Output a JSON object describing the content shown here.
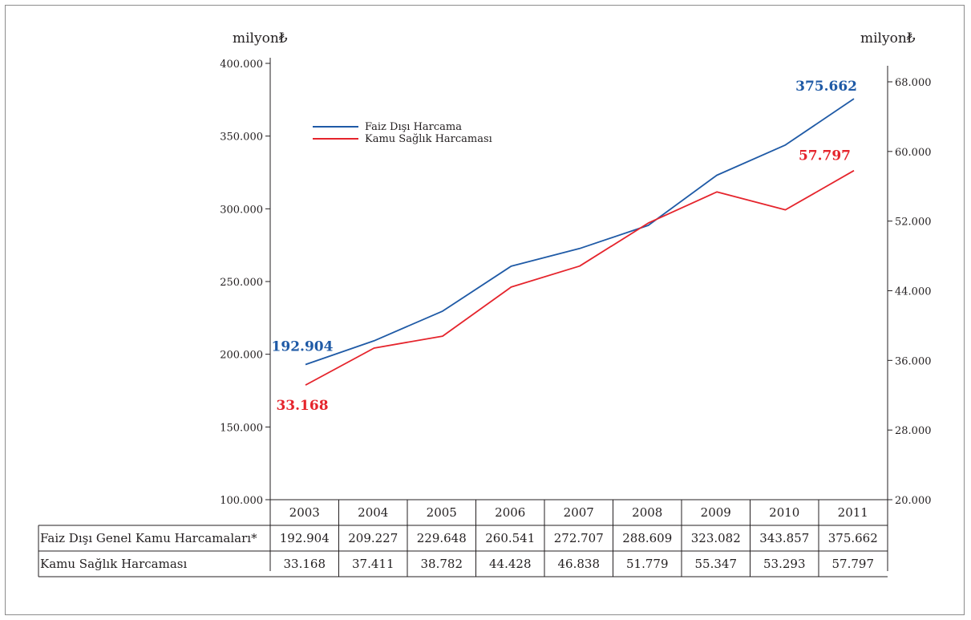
{
  "chart_data": {
    "type": "line",
    "x": [
      "2003",
      "2004",
      "2005",
      "2006",
      "2007",
      "2008",
      "2009",
      "2010",
      "2011"
    ],
    "series": [
      {
        "name": "Faiz Dışı Harcama",
        "axis": "left",
        "color": "#1f5aa6",
        "values": [
          192904,
          209227,
          229648,
          260541,
          272707,
          288609,
          323082,
          343857,
          375662
        ]
      },
      {
        "name": "Kamu Sağlık Harcaması",
        "axis": "right",
        "color": "#e5242c",
        "values": [
          33168,
          37411,
          38782,
          44428,
          46838,
          51779,
          55347,
          53293,
          57797
        ]
      }
    ],
    "y_left": {
      "unit": "milyon₺",
      "lim": [
        100000,
        400000
      ],
      "ticks": [
        100000,
        150000,
        200000,
        250000,
        300000,
        350000,
        400000
      ],
      "tick_labels": [
        "100.000",
        "150.000",
        "200.000",
        "250.000",
        "300.000",
        "350.000",
        "400.000"
      ]
    },
    "y_right": {
      "unit": "milyon₺",
      "lim": [
        20000,
        68000
      ],
      "ticks": [
        20000,
        28000,
        36000,
        44000,
        52000,
        60000,
        68000
      ],
      "tick_labels": [
        "20.000",
        "28.000",
        "36.000",
        "44.000",
        "52.000",
        "60.000",
        "68.000"
      ]
    },
    "annotations": [
      {
        "series": 0,
        "index": 0,
        "text": "192.904",
        "position": "above-left"
      },
      {
        "series": 1,
        "index": 0,
        "text": "33.168",
        "position": "below"
      },
      {
        "series": 0,
        "index": 8,
        "text": "375.662",
        "position": "left"
      },
      {
        "series": 1,
        "index": 8,
        "text": "57.797",
        "position": "above-left"
      }
    ],
    "legend": {
      "placement": "top-left",
      "entries": [
        "Faiz Dışı Harcama",
        "Kamu Sağlık Harcaması"
      ]
    },
    "grid": false,
    "table": {
      "header": [
        "2003",
        "2004",
        "2005",
        "2006",
        "2007",
        "2008",
        "2009",
        "2010",
        "2011"
      ],
      "rows": [
        {
          "label": "Faiz Dışı Genel Kamu Harcamaları*",
          "cells": [
            "192.904",
            "209.227",
            "229.648",
            "260.541",
            "272.707",
            "288.609",
            "323.082",
            "343.857",
            "375.662"
          ]
        },
        {
          "label": "Kamu Sağlık Harcaması",
          "cells": [
            "33.168",
            "37.411",
            "38.782",
            "44.428",
            "46.838",
            "51.779",
            "55.347",
            "53.293",
            "57.797"
          ]
        }
      ]
    }
  }
}
